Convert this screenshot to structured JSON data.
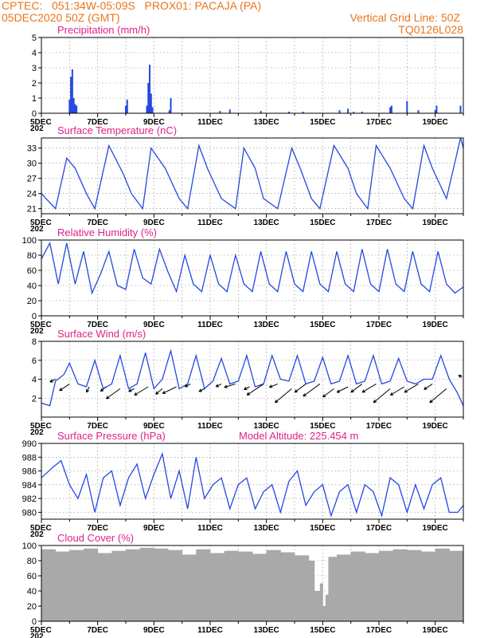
{
  "header": {
    "line1_left": "CPTEC:   051:34W-05:09S   PROX01: PACAJA (PA)",
    "line2_left": "05DEC2020 50Z (GMT)",
    "line1_right": "Vertical Grid Line: 50Z",
    "line2_right": "TQ0126L028"
  },
  "colors": {
    "header": "#e8761e",
    "title": "#e0218a",
    "series": "#2448e0",
    "cloud": "#a9a9a9"
  },
  "x_axis": {
    "ticks": [
      "5DEC",
      "7DEC",
      "9DEC",
      "11DEC",
      "13DEC",
      "15DEC",
      "17DEC",
      "19DEC"
    ],
    "tick_days": [
      0,
      2,
      4,
      6,
      8,
      10,
      12,
      14
    ],
    "partial_year": "202",
    "range": [
      0,
      15.0
    ]
  },
  "chart_data": [
    {
      "type": "bar",
      "id": "precip",
      "title": "Precipitation (mm/h)",
      "ylim": [
        0,
        5
      ],
      "yticks": [
        0,
        1,
        2,
        3,
        4,
        5
      ],
      "x": [
        1.0,
        1.05,
        1.1,
        1.15,
        1.2,
        1.25,
        3.0,
        3.05,
        3.75,
        3.8,
        3.85,
        3.9,
        3.95,
        4.55,
        4.6,
        6.35,
        6.7,
        7.8,
        8.8,
        9.3,
        10.6,
        10.9,
        11.1,
        11.4,
        12.4,
        12.45,
        13.0,
        13.4,
        14.0,
        14.05,
        14.9
      ],
      "values": [
        0.9,
        2.4,
        2.9,
        1.0,
        0.6,
        0.5,
        0.5,
        0.9,
        0.5,
        2.0,
        3.2,
        1.3,
        0.4,
        0.2,
        1.0,
        0.15,
        0.25,
        0.15,
        0.1,
        0.1,
        0.2,
        0.3,
        0.1,
        0.1,
        0.4,
        0.5,
        0.8,
        0.2,
        0.2,
        0.5,
        0.5
      ]
    },
    {
      "type": "line",
      "id": "temp",
      "title": "Surface Temperature (nC)",
      "ylim": [
        20,
        35
      ],
      "yticks": [
        21,
        24,
        27,
        30,
        33
      ],
      "x": [
        0,
        0.5,
        0.9,
        1.2,
        1.6,
        1.9,
        2.4,
        2.9,
        3.2,
        3.6,
        3.9,
        4.4,
        4.9,
        5.2,
        5.6,
        5.9,
        6.4,
        6.9,
        7.2,
        7.6,
        7.9,
        8.4,
        8.9,
        9.2,
        9.6,
        9.9,
        10.4,
        10.9,
        11.2,
        11.6,
        11.9,
        12.4,
        12.9,
        13.2,
        13.6,
        13.9,
        14.4,
        14.9,
        15.0
      ],
      "values": [
        24,
        21,
        31,
        29,
        24,
        21,
        33.5,
        28,
        24,
        21,
        33,
        29,
        23,
        21,
        33.5,
        29,
        23,
        21,
        33,
        29,
        23,
        21,
        33,
        29,
        23,
        21,
        33.5,
        29,
        24,
        21,
        33.5,
        29,
        23,
        21,
        33.5,
        29,
        23,
        35,
        33
      ]
    },
    {
      "type": "line",
      "id": "rh",
      "title": "Relative Humidity (%)",
      "ylim": [
        0,
        100
      ],
      "yticks": [
        0,
        20,
        40,
        60,
        80,
        100
      ],
      "x": [
        0,
        0.3,
        0.6,
        0.9,
        1.2,
        1.5,
        1.8,
        2.1,
        2.4,
        2.7,
        3.0,
        3.3,
        3.6,
        3.9,
        4.2,
        4.5,
        4.8,
        5.1,
        5.4,
        5.7,
        6.0,
        6.3,
        6.6,
        6.9,
        7.2,
        7.5,
        7.8,
        8.1,
        8.4,
        8.7,
        9.0,
        9.3,
        9.6,
        9.9,
        10.2,
        10.5,
        10.8,
        11.1,
        11.4,
        11.7,
        12.0,
        12.3,
        12.6,
        12.9,
        13.2,
        13.5,
        13.8,
        14.1,
        14.4,
        14.7,
        15.0
      ],
      "values": [
        75,
        96,
        42,
        96,
        42,
        85,
        30,
        55,
        85,
        40,
        35,
        88,
        50,
        42,
        88,
        58,
        32,
        80,
        42,
        32,
        80,
        42,
        32,
        80,
        42,
        32,
        85,
        42,
        32,
        85,
        42,
        32,
        85,
        42,
        32,
        85,
        42,
        32,
        88,
        42,
        32,
        88,
        42,
        32,
        85,
        42,
        32,
        85,
        42,
        30,
        38
      ]
    },
    {
      "type": "line",
      "id": "wind",
      "title": "Surface Wind (m/s)",
      "ylim": [
        0,
        8
      ],
      "yticks": [
        2,
        4,
        6,
        8
      ],
      "x": [
        0,
        0.3,
        0.5,
        0.8,
        1.0,
        1.3,
        1.6,
        1.9,
        2.2,
        2.5,
        2.8,
        3.1,
        3.4,
        3.7,
        4.0,
        4.3,
        4.6,
        4.9,
        5.2,
        5.5,
        5.8,
        6.1,
        6.4,
        6.7,
        7.0,
        7.3,
        7.6,
        7.9,
        8.2,
        8.5,
        8.8,
        9.1,
        9.4,
        9.7,
        10.0,
        10.3,
        10.6,
        10.9,
        11.2,
        11.5,
        11.8,
        12.1,
        12.4,
        12.7,
        13.0,
        13.3,
        13.6,
        13.9,
        14.2,
        14.5,
        14.8,
        15.0
      ],
      "values": [
        1.5,
        1.2,
        3.8,
        4.5,
        5.7,
        3.5,
        3.2,
        6.0,
        3.0,
        3.5,
        6.5,
        3.0,
        3.5,
        6.8,
        3.0,
        4.0,
        7.0,
        3.0,
        3.5,
        6.5,
        3.0,
        3.8,
        6.2,
        3.5,
        3.8,
        6.5,
        3.2,
        3.5,
        6.5,
        4.0,
        3.8,
        6.5,
        3.5,
        3.8,
        6.3,
        3.5,
        3.8,
        6.5,
        3.5,
        3.8,
        6.5,
        3.5,
        3.8,
        6.2,
        3.8,
        3.5,
        4.0,
        4.0,
        6.5,
        4.0,
        2.5,
        1.2
      ],
      "arrows": {
        "x": [
          0.5,
          1.0,
          1.7,
          2.3,
          2.8,
          3.3,
          3.8,
          4.3,
          4.8,
          5.3,
          5.8,
          6.4,
          6.9,
          7.4,
          7.9,
          8.4,
          8.9,
          9.4,
          9.9,
          10.4,
          10.9,
          11.4,
          11.9,
          12.4,
          12.9,
          13.4,
          13.9,
          14.4,
          14.95
        ],
        "y": [
          4.0,
          3.5,
          3.2,
          3.2,
          3.0,
          3.0,
          3.2,
          3.0,
          3.2,
          3.5,
          3.0,
          3.5,
          3.5,
          3.2,
          3.5,
          3.5,
          3.0,
          3.5,
          3.5,
          3.0,
          3.2,
          3.5,
          3.5,
          3.0,
          3.2,
          3.5,
          3.5,
          3.0,
          4.2
        ],
        "u": [
          -1.0,
          -1.8,
          -0.5,
          -1.0,
          -2.5,
          -1.0,
          -2.5,
          -1.2,
          -2.5,
          -1.0,
          -1.0,
          -1.0,
          -2.0,
          -1.0,
          -3.0,
          -1.5,
          -3.0,
          -2.0,
          -3.0,
          -2.0,
          -2.0,
          -2.0,
          -2.5,
          -3.0,
          -2.5,
          -2.5,
          -1.5,
          -3.0,
          -0.6
        ],
        "v": [
          -0.5,
          -1.2,
          -1.0,
          -0.8,
          -1.8,
          -0.5,
          -1.5,
          -1.0,
          -1.2,
          -0.5,
          -0.5,
          -0.5,
          -0.6,
          -0.5,
          -2.0,
          -0.6,
          -2.5,
          -1.5,
          -2.2,
          -1.5,
          -1.0,
          -1.5,
          -1.5,
          -2.5,
          -1.5,
          -1.5,
          -1.0,
          -2.5,
          0.4
        ]
      }
    },
    {
      "type": "line",
      "id": "pressure",
      "title": "Surface Pressure (hPa)",
      "annotation": "Model Altitude: 225.454 m",
      "ylim": [
        979,
        990
      ],
      "yticks": [
        980,
        982,
        984,
        986,
        988,
        990
      ],
      "x": [
        0,
        0.4,
        0.7,
        1.0,
        1.3,
        1.6,
        1.9,
        2.2,
        2.5,
        2.8,
        3.1,
        3.4,
        3.7,
        4.0,
        4.3,
        4.6,
        4.9,
        5.2,
        5.5,
        5.8,
        6.1,
        6.4,
        6.7,
        7.0,
        7.3,
        7.6,
        7.9,
        8.2,
        8.5,
        8.8,
        9.1,
        9.4,
        9.7,
        10.0,
        10.3,
        10.6,
        10.9,
        11.2,
        11.5,
        11.8,
        12.1,
        12.4,
        12.7,
        13.0,
        13.3,
        13.6,
        13.9,
        14.2,
        14.5,
        14.8,
        15.0
      ],
      "values": [
        985,
        986.5,
        987.5,
        984,
        982,
        985.5,
        980,
        985,
        986,
        981,
        985,
        987,
        982,
        985.5,
        988.5,
        982,
        986,
        980.5,
        988,
        982,
        984,
        985,
        980.5,
        984,
        985,
        980.5,
        983,
        984,
        980,
        984.5,
        986,
        981,
        983,
        984,
        979.5,
        983,
        984,
        980,
        984,
        983,
        979.5,
        985,
        984,
        980,
        984,
        980.5,
        984,
        985,
        980,
        980,
        981
      ]
    },
    {
      "type": "bar",
      "id": "cloud",
      "title": "Cloud Cover (%)",
      "ylim": [
        0,
        100
      ],
      "yticks": [
        0,
        20,
        40,
        60,
        80,
        100
      ],
      "x": [
        0,
        0.5,
        1.0,
        1.5,
        2.0,
        2.5,
        3.0,
        3.5,
        4.0,
        4.5,
        5.0,
        5.5,
        6.0,
        6.5,
        7.0,
        7.5,
        8.0,
        8.5,
        9.0,
        9.5,
        9.7,
        9.9,
        10.0,
        10.1,
        10.2,
        10.5,
        11.0,
        11.5,
        12.0,
        12.5,
        13.0,
        13.5,
        14.0,
        14.5,
        15.0
      ],
      "values": [
        95,
        92,
        94,
        96,
        90,
        93,
        95,
        97,
        96,
        94,
        88,
        95,
        90,
        93,
        92,
        89,
        94,
        91,
        87,
        80,
        40,
        50,
        20,
        35,
        85,
        88,
        92,
        90,
        93,
        95,
        94,
        92,
        96,
        93,
        95
      ]
    }
  ]
}
